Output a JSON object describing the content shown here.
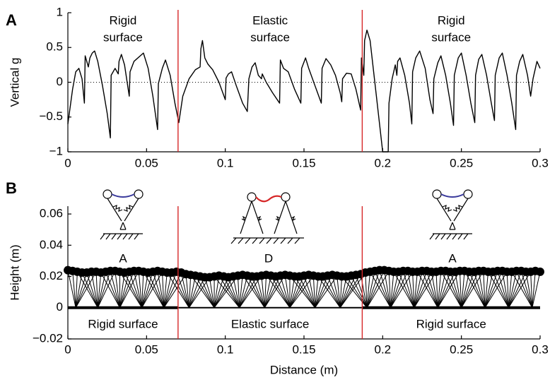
{
  "chart_data": [
    {
      "type": "line",
      "panel_label": "A",
      "ylabel": "Vertical g",
      "xlim": [
        0,
        0.3
      ],
      "ylim": [
        -1,
        1
      ],
      "xticks": [
        0,
        0.05,
        0.1,
        0.15,
        0.2,
        0.25,
        0.3
      ],
      "yticks": [
        {
          "value": -1,
          "label": "−1"
        },
        {
          "value": -0.5,
          "label": "−0.5"
        },
        0,
        0.5,
        1
      ],
      "reference_line": 0,
      "boundaries": [
        0.07,
        0.187
      ],
      "boundary_color": "#d62728",
      "region_labels": [
        [
          "Rigid",
          "surface"
        ],
        [
          "Elastic",
          "surface"
        ],
        [
          "Rigid",
          "surface"
        ]
      ],
      "series": [
        {
          "color": "#000000",
          "x": [
            0,
            0.003,
            0.005,
            0.007,
            0.009,
            0.0105,
            0.011,
            0.012,
            0.013,
            0.014,
            0.0155,
            0.017,
            0.019,
            0.022,
            0.025,
            0.027,
            0.0275,
            0.03,
            0.032,
            0.0325,
            0.034,
            0.036,
            0.039,
            0.0395,
            0.042,
            0.048,
            0.051,
            0.054,
            0.057,
            0.0575,
            0.06,
            0.062,
            0.065,
            0.068,
            0.0705,
            0.073,
            0.077,
            0.081,
            0.084,
            0.0845,
            0.0855,
            0.087,
            0.089,
            0.092,
            0.096,
            0.1,
            0.1005,
            0.102,
            0.104,
            0.107,
            0.111,
            0.114,
            0.115,
            0.117,
            0.119,
            0.121,
            0.123,
            0.1235,
            0.126,
            0.13,
            0.1345,
            0.135,
            0.137,
            0.14,
            0.144,
            0.148,
            0.1485,
            0.151,
            0.153,
            0.157,
            0.161,
            0.1615,
            0.164,
            0.167,
            0.17,
            0.173,
            0.174,
            0.1745,
            0.177,
            0.18,
            0.183,
            0.186,
            0.1865,
            0.188,
            0.1885,
            0.19,
            0.192,
            0.195,
            0.198,
            0.2,
            0.2035,
            0.204,
            0.206,
            0.208,
            0.209,
            0.2095,
            0.211,
            0.214,
            0.217,
            0.2185,
            0.219,
            0.221,
            0.2235,
            0.227,
            0.23,
            0.232,
            0.2325,
            0.235,
            0.237,
            0.24,
            0.243,
            0.245,
            0.2455,
            0.248,
            0.25,
            0.253,
            0.256,
            0.2585,
            0.259,
            0.261,
            0.263,
            0.266,
            0.269,
            0.271,
            0.2715,
            0.274,
            0.276,
            0.279,
            0.282,
            0.2845,
            0.285,
            0.287,
            0.289,
            0.292,
            0.294,
            0.2955,
            0.298,
            0.3
          ],
          "values": [
            -0.6,
            -0.1,
            0.15,
            0.2,
            0.05,
            -0.3,
            0.38,
            0.3,
            0.22,
            0.35,
            0.42,
            0.45,
            0.3,
            -0.05,
            -0.45,
            -0.8,
            0.1,
            0.2,
            0.12,
            0.3,
            0.4,
            0.25,
            -0.2,
            0.15,
            0.3,
            0.42,
            0.2,
            -0.2,
            -0.68,
            -0.02,
            0.2,
            0.32,
            0.1,
            -0.3,
            -0.58,
            -0.2,
            0.05,
            0.18,
            0.22,
            0.48,
            0.6,
            0.35,
            0.26,
            0.18,
            0,
            -0.25,
            0.06,
            0.12,
            0.15,
            -0.05,
            -0.3,
            -0.42,
            0.05,
            0.22,
            0.28,
            0.1,
            0.05,
            0.12,
            0,
            -0.15,
            -0.3,
            0.32,
            0.2,
            0.15,
            -0.1,
            -0.3,
            0.2,
            0.35,
            0.2,
            -0.05,
            -0.3,
            0.2,
            0.34,
            0.25,
            0.1,
            -0.15,
            -0.28,
            0.05,
            0.13,
            0.12,
            -0.1,
            -0.4,
            0.35,
            0.1,
            0.6,
            0.75,
            0.6,
            0,
            -0.6,
            -1,
            -1,
            -0.3,
            0.05,
            0.25,
            0.1,
            0.3,
            0.35,
            0.1,
            -0.3,
            -0.6,
            0.15,
            0.35,
            0.45,
            0.2,
            -0.25,
            -0.45,
            0.05,
            0.28,
            0.38,
            0.1,
            -0.3,
            -0.62,
            0.1,
            0.35,
            0.42,
            0.1,
            -0.3,
            -0.58,
            0.1,
            0.33,
            0.4,
            0.1,
            -0.3,
            -0.55,
            0.1,
            0.35,
            0.42,
            0.1,
            -0.3,
            -0.68,
            0.1,
            0.3,
            0.4,
            0.1,
            -0.2,
            0.05,
            0.3,
            0.2
          ]
        }
      ]
    },
    {
      "type": "gait",
      "panel_label": "B",
      "xlabel": "Distance (m)",
      "ylabel": "Height (m)",
      "xlim": [
        0,
        0.3
      ],
      "ylim": [
        -0.02,
        0.065
      ],
      "xticks": [
        0,
        0.05,
        0.1,
        0.15,
        0.2,
        0.25,
        0.3
      ],
      "yticks": [
        {
          "value": -0.02,
          "label": "−0.02"
        },
        0,
        0.02,
        0.04,
        0.06
      ],
      "boundaries": [
        0.07,
        0.187
      ],
      "boundary_color": "#d62728",
      "region_labels": [
        "Rigid surface",
        "Elastic surface",
        "Rigid surface"
      ],
      "model_labels": [
        "A",
        "D",
        "A"
      ],
      "footholds": [
        0.005,
        0.019,
        0.033,
        0.047,
        0.061,
        0.077,
        0.093,
        0.109,
        0.125,
        0.141,
        0.157,
        0.173,
        0.19,
        0.205,
        0.22,
        0.235,
        0.25,
        0.265,
        0.28,
        0.295
      ],
      "series": [
        {
          "color": "#000000",
          "x": [
            0,
            0.003,
            0.006,
            0.009,
            0.012,
            0.015,
            0.018,
            0.021,
            0.024,
            0.027,
            0.03,
            0.033,
            0.036,
            0.039,
            0.042,
            0.045,
            0.048,
            0.051,
            0.054,
            0.057,
            0.06,
            0.063,
            0.066,
            0.069,
            0.072,
            0.075,
            0.078,
            0.081,
            0.084,
            0.087,
            0.09,
            0.093,
            0.096,
            0.099,
            0.102,
            0.105,
            0.108,
            0.111,
            0.114,
            0.117,
            0.12,
            0.123,
            0.126,
            0.129,
            0.132,
            0.135,
            0.138,
            0.141,
            0.144,
            0.147,
            0.15,
            0.153,
            0.156,
            0.159,
            0.162,
            0.165,
            0.168,
            0.171,
            0.174,
            0.177,
            0.18,
            0.183,
            0.186,
            0.189,
            0.192,
            0.195,
            0.198,
            0.201,
            0.204,
            0.207,
            0.21,
            0.213,
            0.216,
            0.219,
            0.222,
            0.225,
            0.228,
            0.231,
            0.234,
            0.237,
            0.24,
            0.243,
            0.246,
            0.249,
            0.252,
            0.255,
            0.258,
            0.261,
            0.264,
            0.267,
            0.27,
            0.273,
            0.276,
            0.279,
            0.282,
            0.285,
            0.288,
            0.291,
            0.294,
            0.297,
            0.3
          ],
          "values": [
            0.024,
            0.0235,
            0.023,
            0.0225,
            0.0225,
            0.023,
            0.023,
            0.0225,
            0.023,
            0.0235,
            0.0235,
            0.023,
            0.0225,
            0.023,
            0.0235,
            0.0235,
            0.023,
            0.0225,
            0.023,
            0.0235,
            0.023,
            0.0225,
            0.0225,
            0.023,
            0.0225,
            0.0215,
            0.021,
            0.0205,
            0.02,
            0.0195,
            0.0195,
            0.02,
            0.0205,
            0.02,
            0.0195,
            0.02,
            0.0205,
            0.021,
            0.0205,
            0.02,
            0.02,
            0.0205,
            0.021,
            0.0205,
            0.02,
            0.0205,
            0.021,
            0.0205,
            0.02,
            0.02,
            0.0205,
            0.021,
            0.0205,
            0.02,
            0.02,
            0.0205,
            0.021,
            0.0205,
            0.02,
            0.02,
            0.0205,
            0.021,
            0.0215,
            0.0225,
            0.023,
            0.0235,
            0.024,
            0.024,
            0.0235,
            0.023,
            0.023,
            0.0235,
            0.0235,
            0.023,
            0.023,
            0.0235,
            0.0235,
            0.023,
            0.023,
            0.0235,
            0.0235,
            0.023,
            0.023,
            0.0235,
            0.0235,
            0.023,
            0.023,
            0.0235,
            0.0235,
            0.023,
            0.023,
            0.0235,
            0.0235,
            0.023,
            0.023,
            0.0235,
            0.0235,
            0.023,
            0.023,
            0.0235,
            0.023
          ]
        }
      ]
    }
  ]
}
